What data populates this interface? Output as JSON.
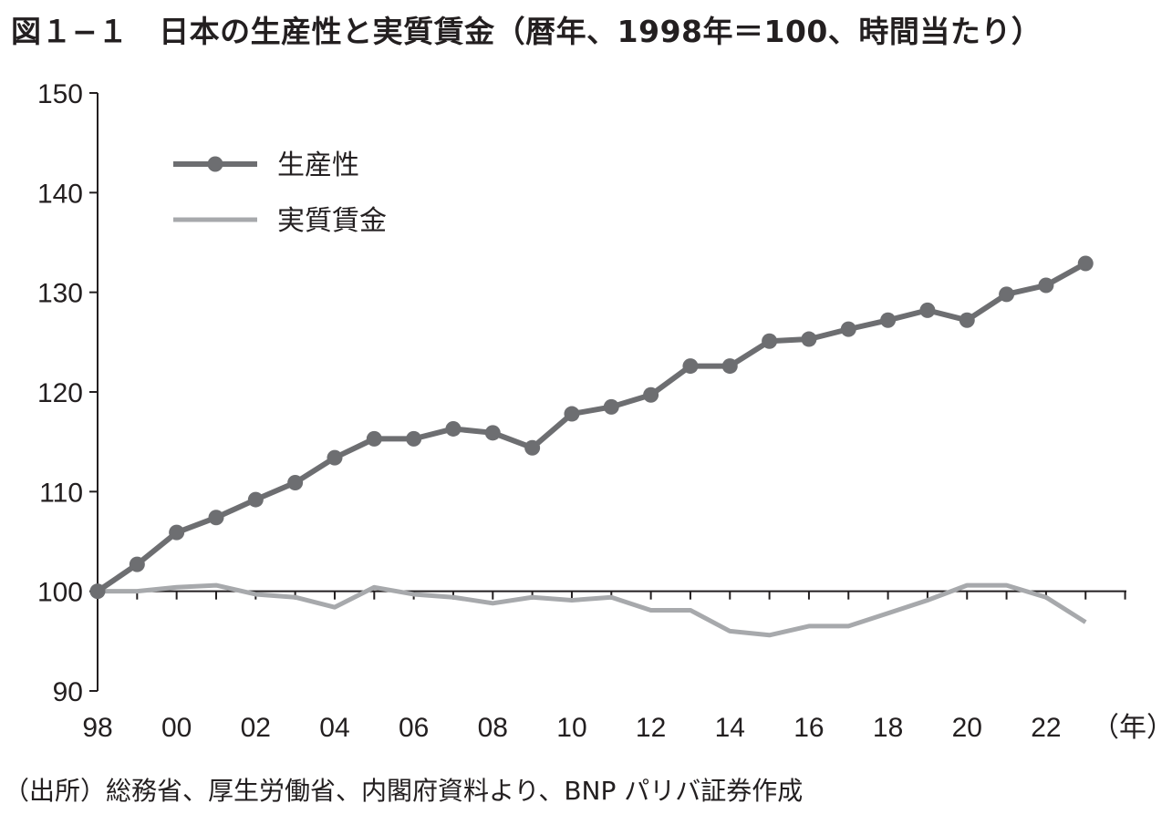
{
  "title": "図１−１　日本の生産性と実質賃金（暦年、1998年＝100、時間当たり）",
  "source": "（出所）総務省、厚生労働省、内閣府資料より、BNP パリバ証券作成",
  "chart_data": {
    "type": "line",
    "title": "図１−１　日本の生産性と実質賃金（暦年、1998年＝100、時間当たり）",
    "xlabel": "（年）",
    "ylabel": "",
    "x": [
      1998,
      1999,
      2000,
      2001,
      2002,
      2003,
      2004,
      2005,
      2006,
      2007,
      2008,
      2009,
      2010,
      2011,
      2012,
      2013,
      2014,
      2015,
      2016,
      2017,
      2018,
      2019,
      2020,
      2021,
      2022,
      2023
    ],
    "xlim": [
      1998,
      2023
    ],
    "ylim": [
      90,
      150
    ],
    "x_tick_labels": [
      "98",
      "00",
      "02",
      "04",
      "06",
      "08",
      "10",
      "12",
      "14",
      "16",
      "18",
      "20",
      "22"
    ],
    "x_tick_years": [
      1998,
      2000,
      2002,
      2004,
      2006,
      2008,
      2010,
      2012,
      2014,
      2016,
      2018,
      2020,
      2022
    ],
    "y_ticks": [
      90,
      100,
      110,
      120,
      130,
      140,
      150
    ],
    "grid": false,
    "legend_position": "top-left",
    "series": [
      {
        "name": "生産性",
        "color": "#6d6e71",
        "markers": true,
        "values": [
          100,
          102.7,
          105.9,
          107.4,
          109.2,
          110.9,
          113.4,
          115.3,
          115.3,
          116.3,
          115.9,
          114.4,
          117.8,
          118.5,
          119.7,
          122.6,
          122.6,
          125.1,
          125.3,
          126.3,
          127.2,
          128.2,
          127.2,
          129.8,
          130.7,
          132.9
        ]
      },
      {
        "name": "実質賃金",
        "color": "#a7a9ac",
        "markers": false,
        "values": [
          100,
          100,
          100.4,
          100.6,
          99.7,
          99.4,
          98.4,
          100.4,
          99.7,
          99.4,
          98.8,
          99.4,
          99.1,
          99.4,
          98.1,
          98.1,
          96.0,
          95.6,
          96.5,
          96.5,
          97.8,
          99.1,
          100.6,
          100.6,
          99.4,
          96.9
        ]
      }
    ]
  }
}
